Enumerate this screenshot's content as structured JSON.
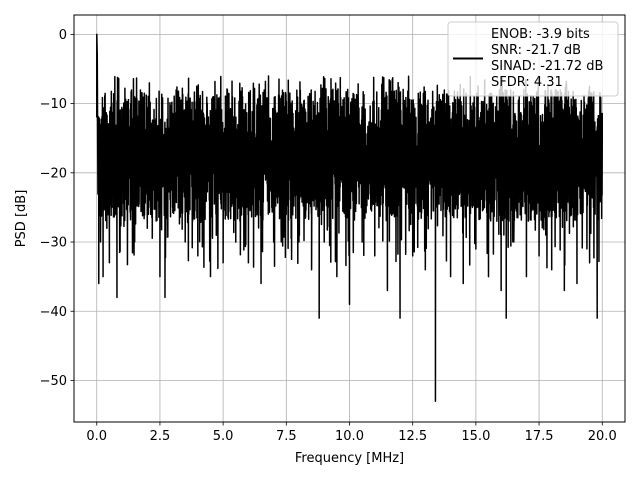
{
  "chart_data": {
    "type": "line",
    "title": "",
    "xlabel": "Frequency [MHz]",
    "ylabel": "PSD [dB]",
    "xlim": [
      -0.9,
      20.9
    ],
    "ylim": [
      -56,
      2.8
    ],
    "xticks": [
      0.0,
      2.5,
      5.0,
      7.5,
      10.0,
      12.5,
      15.0,
      17.5,
      20.0
    ],
    "xtick_labels": [
      "0.0",
      "2.5",
      "5.0",
      "7.5",
      "10.0",
      "12.5",
      "15.0",
      "17.5",
      "20.0"
    ],
    "yticks": [
      0,
      -10,
      -20,
      -30,
      -40,
      -50
    ],
    "ytick_labels": [
      "0",
      "−10",
      "−20",
      "−30",
      "−40",
      "−50"
    ],
    "grid": true,
    "legend_position": "upper right",
    "legend_lines": [
      "ENOB: -3.9 bits",
      "SNR: -21.7 dB",
      "SINAD: -21.72 dB",
      "SFDR: 4.31"
    ],
    "series": [
      {
        "color": "#000000",
        "x": [
          0,
          0.002,
          0.02,
          0.05,
          0.08,
          0.1,
          0.15,
          0.2,
          0.25,
          0.3,
          0.4,
          0.5,
          0.6,
          0.8,
          1.0,
          1.5,
          2.0,
          2.5,
          2.7,
          3.0,
          3.5,
          4.0,
          4.5,
          5.0,
          5.5,
          6.0,
          6.5,
          7.0,
          7.3,
          7.5,
          8.0,
          8.5,
          8.8,
          9.0,
          9.5,
          10.0,
          10.5,
          11.0,
          11.5,
          12.0,
          12.5,
          13.0,
          13.4,
          14.0,
          14.5,
          15.0,
          15.5,
          16.0,
          16.2,
          16.5,
          17.0,
          17.5,
          18.0,
          18.5,
          19.0,
          19.5,
          19.8,
          20.0
        ],
        "y": [
          -12,
          0,
          -3,
          -17,
          -36,
          -15,
          -30,
          -20,
          -35,
          -22,
          -28,
          -33,
          -25,
          -38,
          -22,
          -30,
          -28,
          -35,
          -38,
          -25,
          -30,
          -32,
          -35,
          -33,
          -30,
          -33,
          -36,
          -30,
          -30,
          -26,
          -30,
          -34,
          -41,
          -30,
          -35,
          -39,
          -30,
          -32,
          -37,
          -41,
          -32,
          -34,
          -53,
          -35,
          -36,
          -31,
          -35,
          -37,
          -41,
          -30,
          -35,
          -32,
          -34,
          -37,
          -36,
          -33,
          -41,
          -15
        ]
      }
    ]
  }
}
